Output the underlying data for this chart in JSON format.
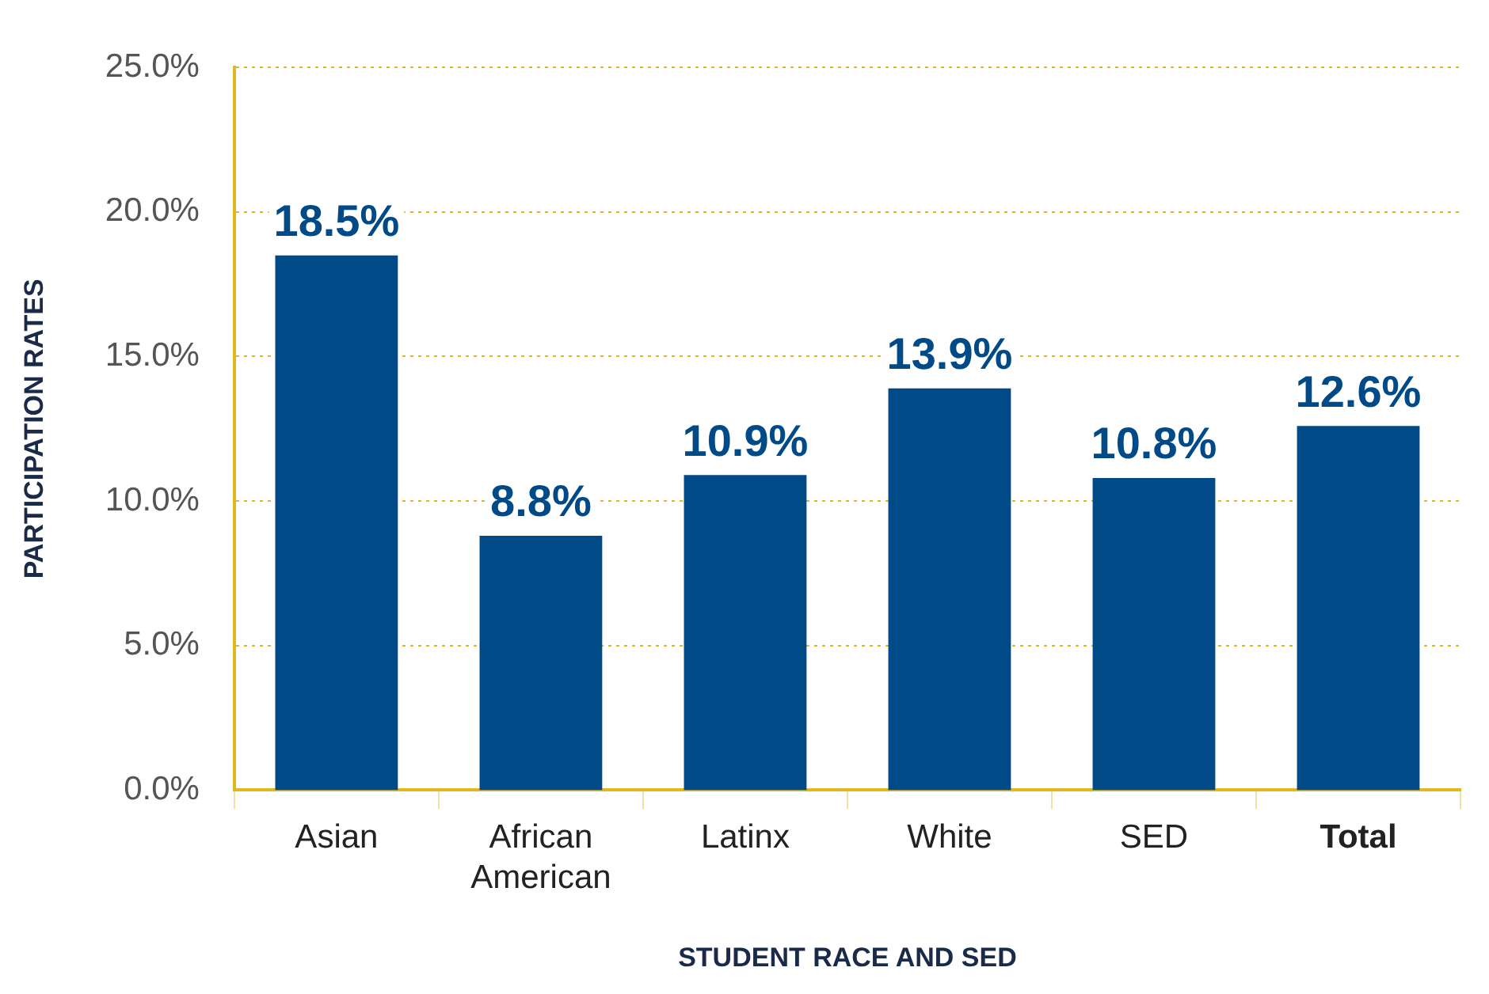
{
  "chart_data": {
    "type": "bar",
    "xlabel": "STUDENT RACE AND SED",
    "ylabel": "PARTICIPATION RATES",
    "categories": [
      "Asian",
      "African\nAmerican",
      "Latinx",
      "White",
      "SED",
      "Total"
    ],
    "values": [
      18.5,
      8.8,
      10.9,
      13.9,
      10.8,
      12.6
    ],
    "value_labels": [
      "18.5%",
      "8.8%",
      "10.9%",
      "13.9%",
      "10.8%",
      "12.6%"
    ],
    "color": "#004a87",
    "ylim": [
      0,
      25
    ],
    "yticks": [
      {
        "value": 0,
        "label": "0.0%"
      },
      {
        "value": 5,
        "label": "5.0%"
      },
      {
        "value": 10,
        "label": "10.0%"
      },
      {
        "value": 15,
        "label": "15.0%"
      },
      {
        "value": 20,
        "label": "20.0%"
      },
      {
        "value": 25,
        "label": "25.0%"
      }
    ],
    "grid": "y",
    "legend": false
  }
}
